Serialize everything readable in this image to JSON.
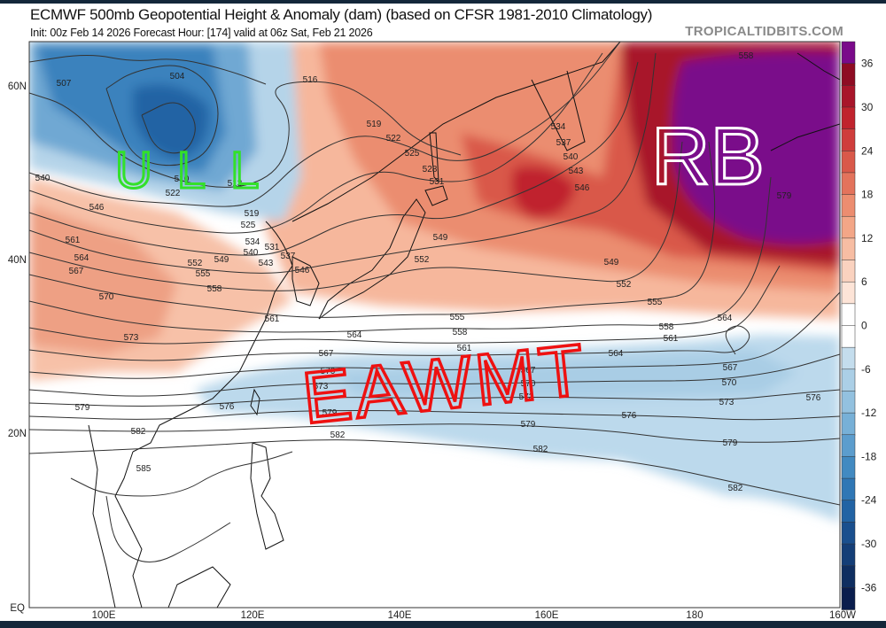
{
  "header": {
    "title": "ECMWF 500mb Geopotential Height & Anomaly (dam) (based on CFSR 1981-2010 Climatology)",
    "subtitle": "Init: 00z Feb 14 2026   Forecast Hour: [174]   valid at 06z Sat, Feb 21 2026",
    "brand": "TROPICALTIDBITS.COM"
  },
  "map": {
    "lat_labels": [
      "60N",
      "40N",
      "20N",
      "EQ"
    ],
    "lon_labels": [
      "100E",
      "120E",
      "140E",
      "160E",
      "180",
      "160W"
    ],
    "contour_labels": [
      "507",
      "504",
      "516",
      "519",
      "522",
      "525",
      "528",
      "531",
      "534",
      "537",
      "540",
      "543",
      "546",
      "549",
      "549",
      "552",
      "552",
      "555",
      "555",
      "558",
      "558",
      "561",
      "561",
      "564",
      "564",
      "564",
      "567",
      "567",
      "567",
      "570",
      "570",
      "570",
      "573",
      "573",
      "573",
      "573",
      "576",
      "576",
      "576",
      "579",
      "579",
      "579",
      "579",
      "582",
      "582",
      "582",
      "582",
      "585",
      "558",
      "579",
      "540",
      "546",
      "561",
      "564",
      "567",
      "570",
      "552",
      "555",
      "558",
      "549",
      "546",
      "543",
      "540",
      "537",
      "534",
      "531",
      "519",
      "522",
      "525",
      "510",
      "513",
      "561"
    ],
    "annotations": {
      "upper_low": "ULL",
      "ridge": "RB",
      "trough": "EAWMT"
    },
    "annotation_colors": {
      "upper_low": "#33e02a",
      "ridge": "#ffffff",
      "trough": "#ee1111"
    }
  },
  "colorbar": {
    "tick_labels": [
      "36",
      "30",
      "24",
      "18",
      "12",
      "6",
      "0",
      "-6",
      "-12",
      "-18",
      "-24",
      "-30",
      "-36"
    ],
    "colors": [
      "#7a0a8a",
      "#8e0c23",
      "#a8152a",
      "#c0232d",
      "#cf3d3c",
      "#d9594a",
      "#e3735c",
      "#ec8d70",
      "#f3a687",
      "#f7bda3",
      "#fad2bf",
      "#fde4d7",
      "#ffffff",
      "#ffffff",
      "#c4dded",
      "#abcfe6",
      "#93c1df",
      "#77b0d7",
      "#5c9dcd",
      "#428ac1",
      "#2f77b5",
      "#2263a4",
      "#1a4f8e",
      "#143e77",
      "#0f2e60",
      "#0a1d4d"
    ]
  }
}
